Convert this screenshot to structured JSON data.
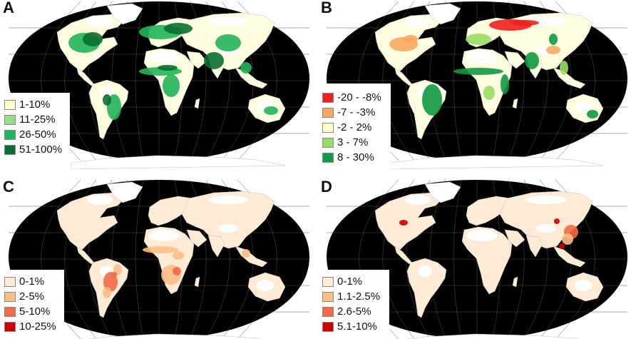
{
  "figure": {
    "panels": [
      {
        "label": "A",
        "legend": [
          {
            "label": "1-10%",
            "color": "#ffffcc"
          },
          {
            "label": "11-25%",
            "color": "#99dd88"
          },
          {
            "label": "26-50%",
            "color": "#22b45a"
          },
          {
            "label": "51-100%",
            "color": "#0a6e32"
          }
        ],
        "land_color": "#fffde0",
        "hotspot_colors": [
          "#22b45a",
          "#0a6e32",
          "#99dd88"
        ]
      },
      {
        "label": "B",
        "legend": [
          {
            "label": "-20 - -8%",
            "color": "#ee2020"
          },
          {
            "label": "-7 - -3%",
            "color": "#f8a860"
          },
          {
            "label": "-2 - 2%",
            "color": "#ffffcc"
          },
          {
            "label": "3 - 7%",
            "color": "#99dd66"
          },
          {
            "label": "8 - 30%",
            "color": "#119944"
          }
        ],
        "land_color": "#fffde0",
        "hotspot_colors": [
          "#119944",
          "#99dd66",
          "#f8a860",
          "#ee2020"
        ]
      },
      {
        "label": "C",
        "legend": [
          {
            "label": "0-1%",
            "color": "#fdebd6"
          },
          {
            "label": "2-5%",
            "color": "#fdbe85"
          },
          {
            "label": "5-10%",
            "color": "#f46a45"
          },
          {
            "label": "10-25%",
            "color": "#cc0000"
          }
        ],
        "land_color": "#fdebd6",
        "hotspot_colors": [
          "#f46a45",
          "#cc0000",
          "#fdbe85"
        ]
      },
      {
        "label": "D",
        "legend": [
          {
            "label": "0-1%",
            "color": "#fdebd6"
          },
          {
            "label": "1.1-2.5%",
            "color": "#fdbe85"
          },
          {
            "label": "2.6-5%",
            "color": "#f46a45"
          },
          {
            "label": "5.1-10%",
            "color": "#cc0000"
          }
        ],
        "land_color": "#fdebd6",
        "hotspot_colors": [
          "#f46a45",
          "#cc0000",
          "#fdbe85"
        ]
      }
    ],
    "ocean_color": "#000000",
    "graticule_color": "#555555",
    "ice_color": "#ffffff"
  }
}
